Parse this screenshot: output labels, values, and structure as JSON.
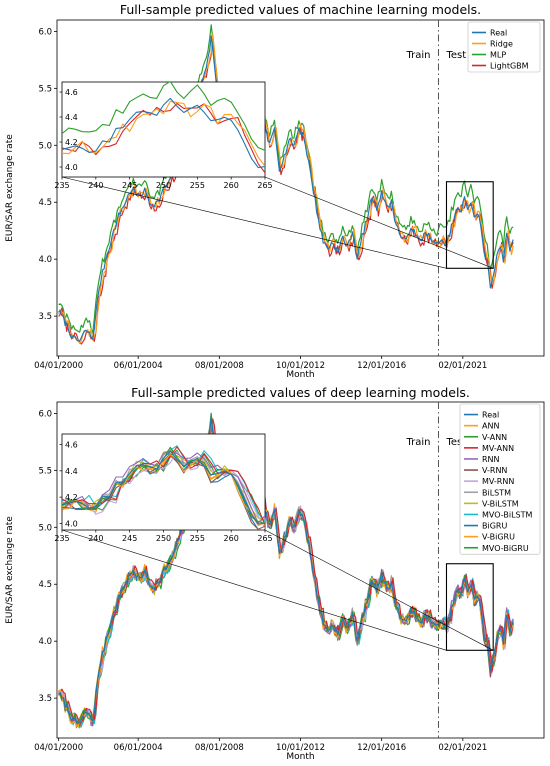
{
  "chart_data": [
    {
      "type": "line",
      "title": "Full-sample predicted values of machine learning models.",
      "xlabel": "Month",
      "ylabel": "EUR/SAR exchange rate",
      "xlim": [
        0,
        300
      ],
      "ylim": [
        3.15,
        6.1
      ],
      "x_ticks": [
        {
          "x": 1,
          "label": "04/01/2000"
        },
        {
          "x": 50,
          "label": "06/01/2004"
        },
        {
          "x": 100,
          "label": "08/01/2008"
        },
        {
          "x": 150,
          "label": "10/01/2012"
        },
        {
          "x": 200,
          "label": "12/01/2016"
        },
        {
          "x": 250,
          "label": "02/01/2021"
        }
      ],
      "y_ticks": [
        3.5,
        4.0,
        4.5,
        5.0,
        5.5,
        6.0
      ],
      "split_x": 235,
      "annotations": {
        "train": "Train",
        "test": "Test"
      },
      "legend_position": "upper right",
      "inset": {
        "xlim": [
          235,
          265
        ],
        "ylim": [
          3.92,
          4.68
        ],
        "x_ticks": [
          235,
          240,
          245,
          250,
          255,
          260,
          265
        ],
        "y_ticks": [
          4.0,
          4.2,
          4.4,
          4.6
        ]
      },
      "zoom_box": {
        "x": [
          235,
          265
        ],
        "y": [
          3.92,
          4.68
        ]
      },
      "series": [
        {
          "name": "Real",
          "color": "#1f77b4"
        },
        {
          "name": "Ridge",
          "color": "#ff9f1c"
        },
        {
          "name": "MLP",
          "color": "#2ca02c"
        },
        {
          "name": "LightGBM",
          "color": "#d62728"
        }
      ],
      "real_anchors": [
        [
          1,
          3.55
        ],
        [
          6,
          3.42
        ],
        [
          10,
          3.3
        ],
        [
          14,
          3.28
        ],
        [
          18,
          3.38
        ],
        [
          22,
          3.3
        ],
        [
          26,
          3.75
        ],
        [
          30,
          4.0
        ],
        [
          34,
          4.2
        ],
        [
          38,
          4.38
        ],
        [
          42,
          4.5
        ],
        [
          46,
          4.62
        ],
        [
          50,
          4.55
        ],
        [
          54,
          4.6
        ],
        [
          58,
          4.48
        ],
        [
          62,
          4.5
        ],
        [
          66,
          4.62
        ],
        [
          70,
          4.7
        ],
        [
          74,
          4.85
        ],
        [
          78,
          5.05
        ],
        [
          82,
          5.25
        ],
        [
          86,
          5.45
        ],
        [
          90,
          5.6
        ],
        [
          93,
          5.75
        ],
        [
          95,
          5.95
        ],
        [
          97,
          5.7
        ],
        [
          99,
          5.45
        ],
        [
          101,
          5.2
        ],
        [
          104,
          5.4
        ],
        [
          107,
          5.3
        ],
        [
          110,
          5.1
        ],
        [
          113,
          5.45
        ],
        [
          116,
          5.2
        ],
        [
          119,
          5.05
        ],
        [
          122,
          5.3
        ],
        [
          125,
          5.4
        ],
        [
          128,
          5.15
        ],
        [
          131,
          5.0
        ],
        [
          134,
          5.15
        ],
        [
          137,
          4.8
        ],
        [
          140,
          4.9
        ],
        [
          143,
          5.05
        ],
        [
          146,
          5.0
        ],
        [
          149,
          5.15
        ],
        [
          152,
          5.08
        ],
        [
          155,
          4.85
        ],
        [
          158,
          4.6
        ],
        [
          161,
          4.35
        ],
        [
          164,
          4.15
        ],
        [
          167,
          4.1
        ],
        [
          170,
          4.15
        ],
        [
          173,
          4.05
        ],
        [
          176,
          4.2
        ],
        [
          179,
          4.1
        ],
        [
          182,
          4.25
        ],
        [
          185,
          4.0
        ],
        [
          188,
          4.2
        ],
        [
          191,
          4.35
        ],
        [
          194,
          4.55
        ],
        [
          197,
          4.45
        ],
        [
          200,
          4.6
        ],
        [
          203,
          4.45
        ],
        [
          206,
          4.5
        ],
        [
          209,
          4.3
        ],
        [
          212,
          4.2
        ],
        [
          215,
          4.15
        ],
        [
          218,
          4.3
        ],
        [
          221,
          4.2
        ],
        [
          224,
          4.15
        ],
        [
          227,
          4.25
        ],
        [
          230,
          4.18
        ],
        [
          233,
          4.12
        ],
        [
          235,
          4.17
        ],
        [
          237,
          4.15
        ],
        [
          239,
          4.1
        ],
        [
          241,
          4.18
        ],
        [
          243,
          4.28
        ],
        [
          245,
          4.38
        ],
        [
          247,
          4.45
        ],
        [
          249,
          4.4
        ],
        [
          251,
          4.55
        ],
        [
          253,
          4.45
        ],
        [
          255,
          4.5
        ],
        [
          257,
          4.35
        ],
        [
          259,
          4.42
        ],
        [
          261,
          4.3
        ],
        [
          263,
          4.05
        ],
        [
          265,
          3.98
        ],
        [
          267,
          3.75
        ],
        [
          269,
          3.88
        ],
        [
          271,
          4.05
        ],
        [
          273,
          4.12
        ],
        [
          275,
          4.0
        ],
        [
          277,
          4.2
        ],
        [
          279,
          4.1
        ],
        [
          281,
          4.15
        ]
      ]
    },
    {
      "type": "line",
      "title": "Full-sample predicted values of deep learning models.",
      "xlabel": "Month",
      "ylabel": "EUR/SAR exchange rate",
      "xlim": [
        0,
        300
      ],
      "ylim": [
        3.15,
        6.1
      ],
      "x_ticks": [
        {
          "x": 1,
          "label": "04/01/2000"
        },
        {
          "x": 50,
          "label": "06/01/2004"
        },
        {
          "x": 100,
          "label": "08/01/2008"
        },
        {
          "x": 150,
          "label": "10/01/2012"
        },
        {
          "x": 200,
          "label": "12/01/2016"
        },
        {
          "x": 250,
          "label": "02/01/2021"
        }
      ],
      "y_ticks": [
        3.5,
        4.0,
        4.5,
        5.0,
        5.5,
        6.0
      ],
      "split_x": 235,
      "annotations": {
        "train": "Train",
        "test": "Test"
      },
      "legend_position": "upper right",
      "inset": {
        "xlim": [
          235,
          265
        ],
        "ylim": [
          3.95,
          4.68
        ],
        "x_ticks": [
          235,
          240,
          245,
          250,
          255,
          260,
          265
        ],
        "y_ticks": [
          4.0,
          4.2,
          4.4,
          4.6
        ]
      },
      "zoom_box": {
        "x": [
          235,
          265
        ],
        "y": [
          3.92,
          4.68
        ]
      },
      "series": [
        {
          "name": "Real",
          "color": "#1f77b4"
        },
        {
          "name": "ANN",
          "color": "#ff9f1c"
        },
        {
          "name": "V-ANN",
          "color": "#2ca02c"
        },
        {
          "name": "MV-ANN",
          "color": "#d62728"
        },
        {
          "name": "RNN",
          "color": "#9467bd"
        },
        {
          "name": "V-RNN",
          "color": "#8c564b"
        },
        {
          "name": "MV-RNN",
          "color": "#c5a3e0"
        },
        {
          "name": "BiLSTM",
          "color": "#a0a0a0"
        },
        {
          "name": "V-BiLSTM",
          "color": "#bcbd22"
        },
        {
          "name": "MVO-BiLSTM",
          "color": "#17becf"
        },
        {
          "name": "BiGRU",
          "color": "#1f77b4"
        },
        {
          "name": "V-BiGRU",
          "color": "#ff9f1c"
        },
        {
          "name": "MVO-BiGRU",
          "color": "#2ca02c"
        }
      ]
    }
  ]
}
